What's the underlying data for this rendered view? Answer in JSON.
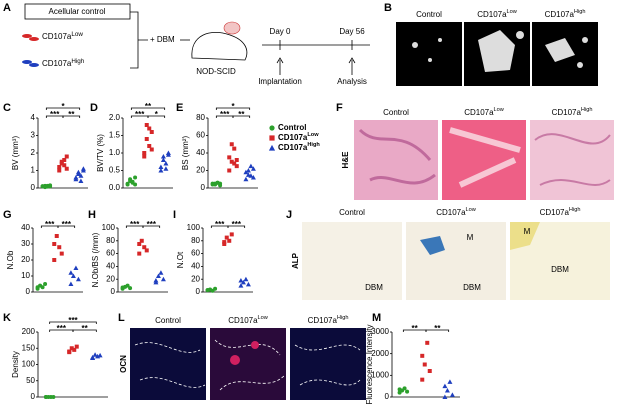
{
  "panel_letters": [
    "A",
    "B",
    "C",
    "D",
    "E",
    "F",
    "G",
    "H",
    "I",
    "J",
    "K",
    "L",
    "M"
  ],
  "groups": [
    {
      "name": "Control",
      "color": "#2ca02c"
    },
    {
      "name": "CD107a",
      "sup": "Low",
      "color": "#d62728"
    },
    {
      "name": "CD107a",
      "sup": "High",
      "color": "#1f3fbf"
    }
  ],
  "schematic": {
    "control": "Acellular control",
    "dbm": "+ DBM",
    "mouse": "NOD-SCID",
    "day0": "Day 0",
    "day56": "Day 56",
    "step1": "Implantation",
    "step2": "Analysis"
  },
  "images": {
    "he": "H&E",
    "alp": "ALP",
    "ocn": "OCN",
    "alp_labels": [
      "DBM",
      "M",
      "DBM",
      "M",
      "DBM"
    ]
  },
  "chart_data": [
    {
      "type": "strip",
      "ylabel": "BV (mm³)",
      "ylim": [
        0,
        4
      ],
      "yticks": [
        0,
        1,
        2,
        3,
        4
      ],
      "series": [
        {
          "values": [
            0.1,
            0.12,
            0.08,
            0.15,
            0.1,
            0.05,
            0.12,
            0.1
          ]
        },
        {
          "values": [
            1.2,
            1.5,
            1.3,
            1.8,
            1.0,
            1.4,
            1.6,
            1.1
          ]
        },
        {
          "values": [
            0.5,
            0.9,
            0.7,
            1.0,
            0.6,
            0.8,
            0.4,
            1.1
          ]
        }
      ],
      "annotations": [
        "*",
        "***",
        "**"
      ]
    },
    {
      "type": "strip",
      "ylabel": "BV/TV (%)",
      "ylim": [
        0,
        2
      ],
      "yticks": [
        {
          "value": 0,
          "label": "0.0"
        },
        0.5,
        {
          "value": 1,
          "label": "1.0"
        },
        1.5,
        {
          "value": 2,
          "label": "2.0"
        }
      ],
      "series": [
        {
          "values": [
            0.1,
            0.2,
            0.15,
            0.3,
            0.12,
            0.25,
            0.18,
            0.1
          ]
        },
        {
          "values": [
            0.9,
            1.8,
            1.2,
            1.6,
            1.0,
            1.4,
            1.7,
            1.1
          ]
        },
        {
          "values": [
            0.5,
            0.9,
            0.7,
            1.0,
            0.6,
            0.8,
            0.55,
            0.95
          ]
        }
      ],
      "annotations": [
        "**",
        "***",
        "*"
      ]
    },
    {
      "type": "strip",
      "ylabel": "BS (mm²)",
      "ylim": [
        0,
        80
      ],
      "yticks": [
        0,
        20,
        40,
        60,
        80
      ],
      "series": [
        {
          "values": [
            4,
            5,
            6,
            3,
            5,
            4,
            6,
            5
          ]
        },
        {
          "values": [
            20,
            30,
            45,
            25,
            35,
            50,
            28,
            32
          ]
        },
        {
          "values": [
            10,
            15,
            25,
            12,
            18,
            20,
            14,
            22
          ]
        }
      ],
      "annotations": [
        "*",
        "***",
        "**"
      ]
    },
    {
      "type": "strip",
      "ylabel": "N.Ob",
      "ylim": [
        0,
        40
      ],
      "yticks": [
        0,
        10,
        20,
        30,
        40
      ],
      "series": [
        {
          "values": [
            2,
            4,
            3,
            5,
            3
          ]
        },
        {
          "values": [
            20,
            35,
            28,
            24,
            30
          ]
        },
        {
          "values": [
            5,
            10,
            15,
            8,
            12
          ]
        }
      ],
      "annotations": [
        "***",
        "***"
      ]
    },
    {
      "type": "strip",
      "ylabel": "N.Ob/BS (/mm)",
      "ylim": [
        0,
        100
      ],
      "yticks": [
        0,
        20,
        40,
        60,
        80,
        100
      ],
      "series": [
        {
          "values": [
            5,
            8,
            10,
            6,
            7
          ]
        },
        {
          "values": [
            60,
            80,
            70,
            65,
            75
          ]
        },
        {
          "values": [
            15,
            25,
            30,
            20,
            18
          ]
        }
      ],
      "annotations": [
        "***",
        "***"
      ]
    },
    {
      "type": "strip",
      "ylabel": "N.Ot",
      "ylim": [
        0,
        100
      ],
      "yticks": [
        0,
        20,
        40,
        60,
        80,
        100
      ],
      "series": [
        {
          "values": [
            3,
            4,
            2,
            5,
            3
          ]
        },
        {
          "values": [
            75,
            85,
            80,
            90,
            78
          ]
        },
        {
          "values": [
            10,
            15,
            20,
            12,
            18
          ]
        }
      ],
      "annotations": [
        "***",
        "***"
      ]
    },
    {
      "type": "strip",
      "ylabel": "Density",
      "ylim": [
        0,
        200
      ],
      "yticks": [
        0,
        50,
        100,
        150,
        200
      ],
      "series": [
        {
          "values": [
            0,
            0,
            0,
            0,
            0
          ]
        },
        {
          "values": [
            140,
            150,
            145,
            155,
            138
          ]
        },
        {
          "values": [
            120,
            130,
            125,
            128,
            122
          ]
        }
      ],
      "annotations": [
        "***",
        "***",
        "**"
      ]
    },
    {
      "type": "strip",
      "ylabel": "Fluorescence Intensity",
      "ylim": [
        0,
        3000
      ],
      "yticks": [
        0,
        1000,
        2000,
        3000
      ],
      "series": [
        {
          "values": [
            200,
            300,
            400,
            250,
            350
          ]
        },
        {
          "values": [
            800,
            1500,
            2500,
            1200,
            1900
          ]
        },
        {
          "values": [
            0,
            300,
            700,
            100,
            500
          ]
        }
      ],
      "annotations": [
        "**",
        "**"
      ]
    }
  ]
}
